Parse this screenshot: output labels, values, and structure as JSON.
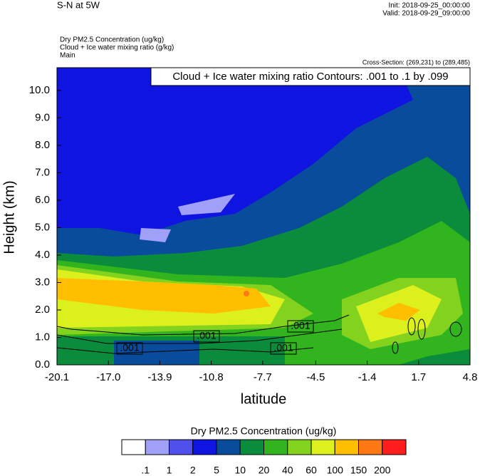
{
  "chart_data": {
    "type": "contour",
    "title": "S-N at 5W",
    "init": "Init: 2018-09-25_00:00:00",
    "valid": "Valid: 2018-09-29_09:00:00",
    "fill_field": "Dry PM2.5 Concentration   (ug/kg)",
    "contour_field": "Cloud + Ice water mixing ratio   (g/kg)",
    "subtitle": "Main",
    "cross_section": "Cross-Section: (269,231) to (289,485)",
    "contour_info": "Cloud + Ice water mixing ratio Contours: .001 to .1 by .099",
    "contour_labels": [
      ".001",
      ".001",
      ".001",
      ".001"
    ],
    "xlabel": "latitude",
    "ylabel": "Height (km)",
    "xlim": [
      -20.1,
      4.8
    ],
    "ylim": [
      0,
      10.83
    ],
    "xticks": [
      -20.1,
      {
        "value": -17,
        "label": "-17.0"
      },
      -13.9,
      -10.8,
      -7.7,
      -4.5,
      -1.4,
      1.7,
      4.8
    ],
    "yticks": [
      {
        "value": 0,
        "label": "0.0"
      },
      {
        "value": 1,
        "label": "1.0"
      },
      {
        "value": 2,
        "label": "2.0"
      },
      {
        "value": 3,
        "label": "3.0"
      },
      {
        "value": 4,
        "label": "4.0"
      },
      {
        "value": 5,
        "label": "5.0"
      },
      {
        "value": 6,
        "label": "6.0"
      },
      {
        "value": 7,
        "label": "7.0"
      },
      {
        "value": 8,
        "label": "8.0"
      },
      {
        "value": 9,
        "label": "9.0"
      },
      {
        "value": 10,
        "label": "10.0"
      }
    ],
    "colorbar_title": "Dry PM2.5 Concentration  (ug/kg)",
    "levels": [
      {
        "value": 0.1,
        "label": ".1"
      },
      1,
      2,
      5,
      10,
      20,
      40,
      60,
      100,
      150,
      200
    ],
    "colors": [
      "#ffffff",
      "#a0a0f8",
      "#5050ec",
      "#0f14e0",
      "#0a4c9c",
      "#0a8c3c",
      "#32b41e",
      "#82d21e",
      "#dcf01e",
      "#ffbe00",
      "#ff7814",
      "#ff1e1e"
    ]
  }
}
